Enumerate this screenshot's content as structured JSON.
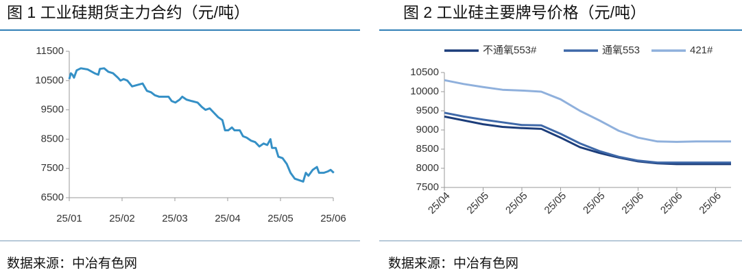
{
  "chart_data": [
    {
      "type": "line",
      "title": "图 1 工业硅期货主力合约（元/吨）",
      "source": "数据来源：中冶有色网",
      "xlim": [
        0,
        5
      ],
      "ylim": [
        6500,
        11500
      ],
      "yticks": [
        6500,
        7500,
        8500,
        9500,
        10500,
        11500
      ],
      "xticks": [
        {
          "value": 0,
          "label": "25/01"
        },
        {
          "value": 1,
          "label": "25/02"
        },
        {
          "value": 2,
          "label": "25/03"
        },
        {
          "value": 3,
          "label": "25/04"
        },
        {
          "value": 4,
          "label": "25/05"
        },
        {
          "value": 5,
          "label": "25/06"
        }
      ],
      "x": [
        0,
        0.03,
        0.06,
        0.09,
        0.14,
        0.22,
        0.35,
        0.48,
        0.55,
        0.58,
        0.66,
        0.74,
        0.83,
        0.92,
        0.97,
        1.03,
        1.1,
        1.19,
        1.29,
        1.39,
        1.47,
        1.55,
        1.62,
        1.7,
        1.78,
        1.88,
        1.94,
        2.01,
        2.09,
        2.14,
        2.22,
        2.32,
        2.43,
        2.51,
        2.58,
        2.66,
        2.74,
        2.82,
        2.9,
        2.95,
        3.01,
        3.08,
        3.13,
        3.23,
        3.29,
        3.36,
        3.44,
        3.52,
        3.6,
        3.68,
        3.75,
        3.81,
        3.84,
        3.91,
        3.96,
        4.04,
        4.12,
        4.19,
        4.27,
        4.35,
        4.43,
        4.48,
        4.53,
        4.61,
        4.69,
        4.73,
        4.82,
        4.9,
        4.95,
        5.01
      ],
      "series": [
        {
          "color": "#3590c6",
          "values": [
            10550,
            10750,
            10700,
            10600,
            10850,
            10920,
            10880,
            10750,
            10700,
            10900,
            10920,
            10800,
            10750,
            10600,
            10500,
            10550,
            10500,
            10300,
            10350,
            10400,
            10150,
            10100,
            10000,
            9950,
            9950,
            9950,
            9800,
            9750,
            9850,
            9950,
            9850,
            9800,
            9750,
            9600,
            9500,
            9550,
            9400,
            9250,
            9150,
            8800,
            8800,
            8900,
            8800,
            8800,
            8600,
            8550,
            8450,
            8400,
            8250,
            8350,
            8300,
            8500,
            8200,
            8200,
            7900,
            7850,
            7650,
            7350,
            7150,
            7100,
            7050,
            7350,
            7250,
            7450,
            7550,
            7350,
            7350,
            7400,
            7450,
            7350
          ]
        }
      ]
    },
    {
      "type": "line",
      "title": "图 2 工业硅主要牌号价格（元/吨）",
      "source": "数据来源：中冶有色网",
      "xlim": [
        0,
        7.4
      ],
      "ylim": [
        7500,
        10500
      ],
      "yticks": [
        7500,
        8000,
        8500,
        9000,
        9500,
        10000,
        10500
      ],
      "xticks": [
        {
          "value": 0,
          "label": "25/04"
        },
        {
          "value": 1,
          "label": "25/05"
        },
        {
          "value": 2,
          "label": "25/05"
        },
        {
          "value": 3,
          "label": "25/05"
        },
        {
          "value": 4,
          "label": "25/05"
        },
        {
          "value": 5,
          "label": "25/06"
        },
        {
          "value": 6,
          "label": "25/06"
        },
        {
          "value": 7,
          "label": "25/06"
        }
      ],
      "x": [
        0,
        0.5,
        1,
        1.5,
        2,
        2.5,
        3,
        3.5,
        4,
        4.5,
        5,
        5.5,
        6,
        6.5,
        7,
        7.4
      ],
      "series": [
        {
          "name": "不通氧553#",
          "color": "#1c3d7a",
          "values": [
            9350,
            9250,
            9150,
            9080,
            9050,
            9030,
            8800,
            8550,
            8400,
            8280,
            8180,
            8130,
            8110,
            8110,
            8110,
            8110
          ]
        },
        {
          "name": "通氧553",
          "color": "#3e68a8",
          "values": [
            9450,
            9350,
            9270,
            9200,
            9130,
            9120,
            8900,
            8650,
            8450,
            8300,
            8200,
            8150,
            8150,
            8150,
            8150,
            8150
          ]
        },
        {
          "name": "421#",
          "color": "#8fb0dc",
          "values": [
            10300,
            10200,
            10120,
            10050,
            10030,
            10000,
            9800,
            9500,
            9250,
            8980,
            8800,
            8700,
            8690,
            8700,
            8700,
            8700
          ]
        }
      ]
    }
  ]
}
